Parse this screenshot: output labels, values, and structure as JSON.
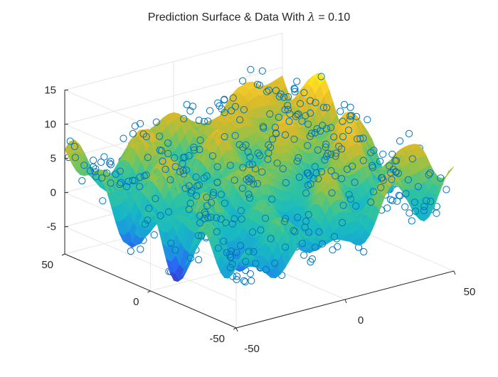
{
  "title": {
    "prefix": "Prediction Surface & Data With",
    "symbol": "λ",
    "suffix": "= 0.10"
  },
  "chart_data": {
    "type": "surface3d",
    "title": "Prediction Surface & Data With λ = 0.10",
    "xlim": [
      -50,
      50
    ],
    "ylim": [
      -50,
      50
    ],
    "zlim": [
      -9,
      15
    ],
    "z_ticks": [
      "15",
      "10",
      "5",
      "0",
      "-5"
    ],
    "x_ticks": [
      "-50",
      "0",
      "50"
    ],
    "y_ticks": [
      "50",
      "0",
      "-50"
    ],
    "colormap": [
      "#3e26a8",
      "#2d5ff5",
      "#1a9ddb",
      "#18b9c3",
      "#33c49c",
      "#8cc34b",
      "#d7b92b",
      "#f9cd2d",
      "#f9fb0e"
    ],
    "marker_color": "#0072bd",
    "marker": "open-circle",
    "grid": true,
    "surface_z_range": [
      -7,
      12
    ],
    "data_points": 700
  }
}
